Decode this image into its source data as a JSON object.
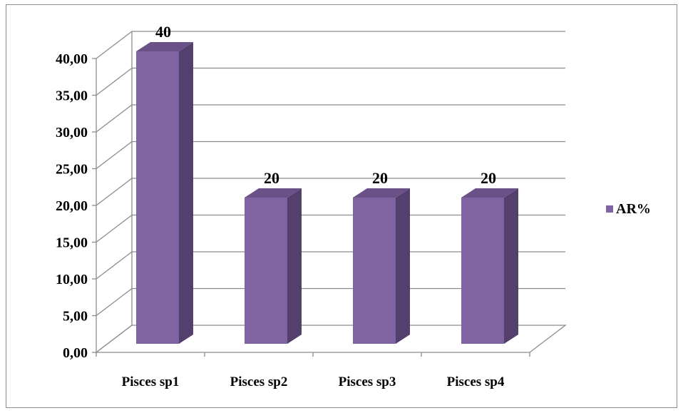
{
  "chart_data": {
    "type": "bar",
    "categories": [
      "Pisces sp1",
      "Pisces sp2",
      "Pisces sp3",
      "Pisces sp4"
    ],
    "series": [
      {
        "name": "AR%",
        "values": [
          40,
          20,
          20,
          20
        ]
      }
    ],
    "data_labels": [
      "40",
      "20",
      "20",
      "20"
    ],
    "y_ticks": [
      "0,00",
      "5,00",
      "10,00",
      "15,00",
      "20,00",
      "25,00",
      "30,00",
      "35,00",
      "40,00"
    ],
    "ylim": [
      0,
      40
    ],
    "grid": true,
    "legend_position": "right",
    "bar_colors": {
      "front": "#8064a2",
      "side": "#54406d",
      "top": "#6a5288"
    },
    "three_d": true
  }
}
